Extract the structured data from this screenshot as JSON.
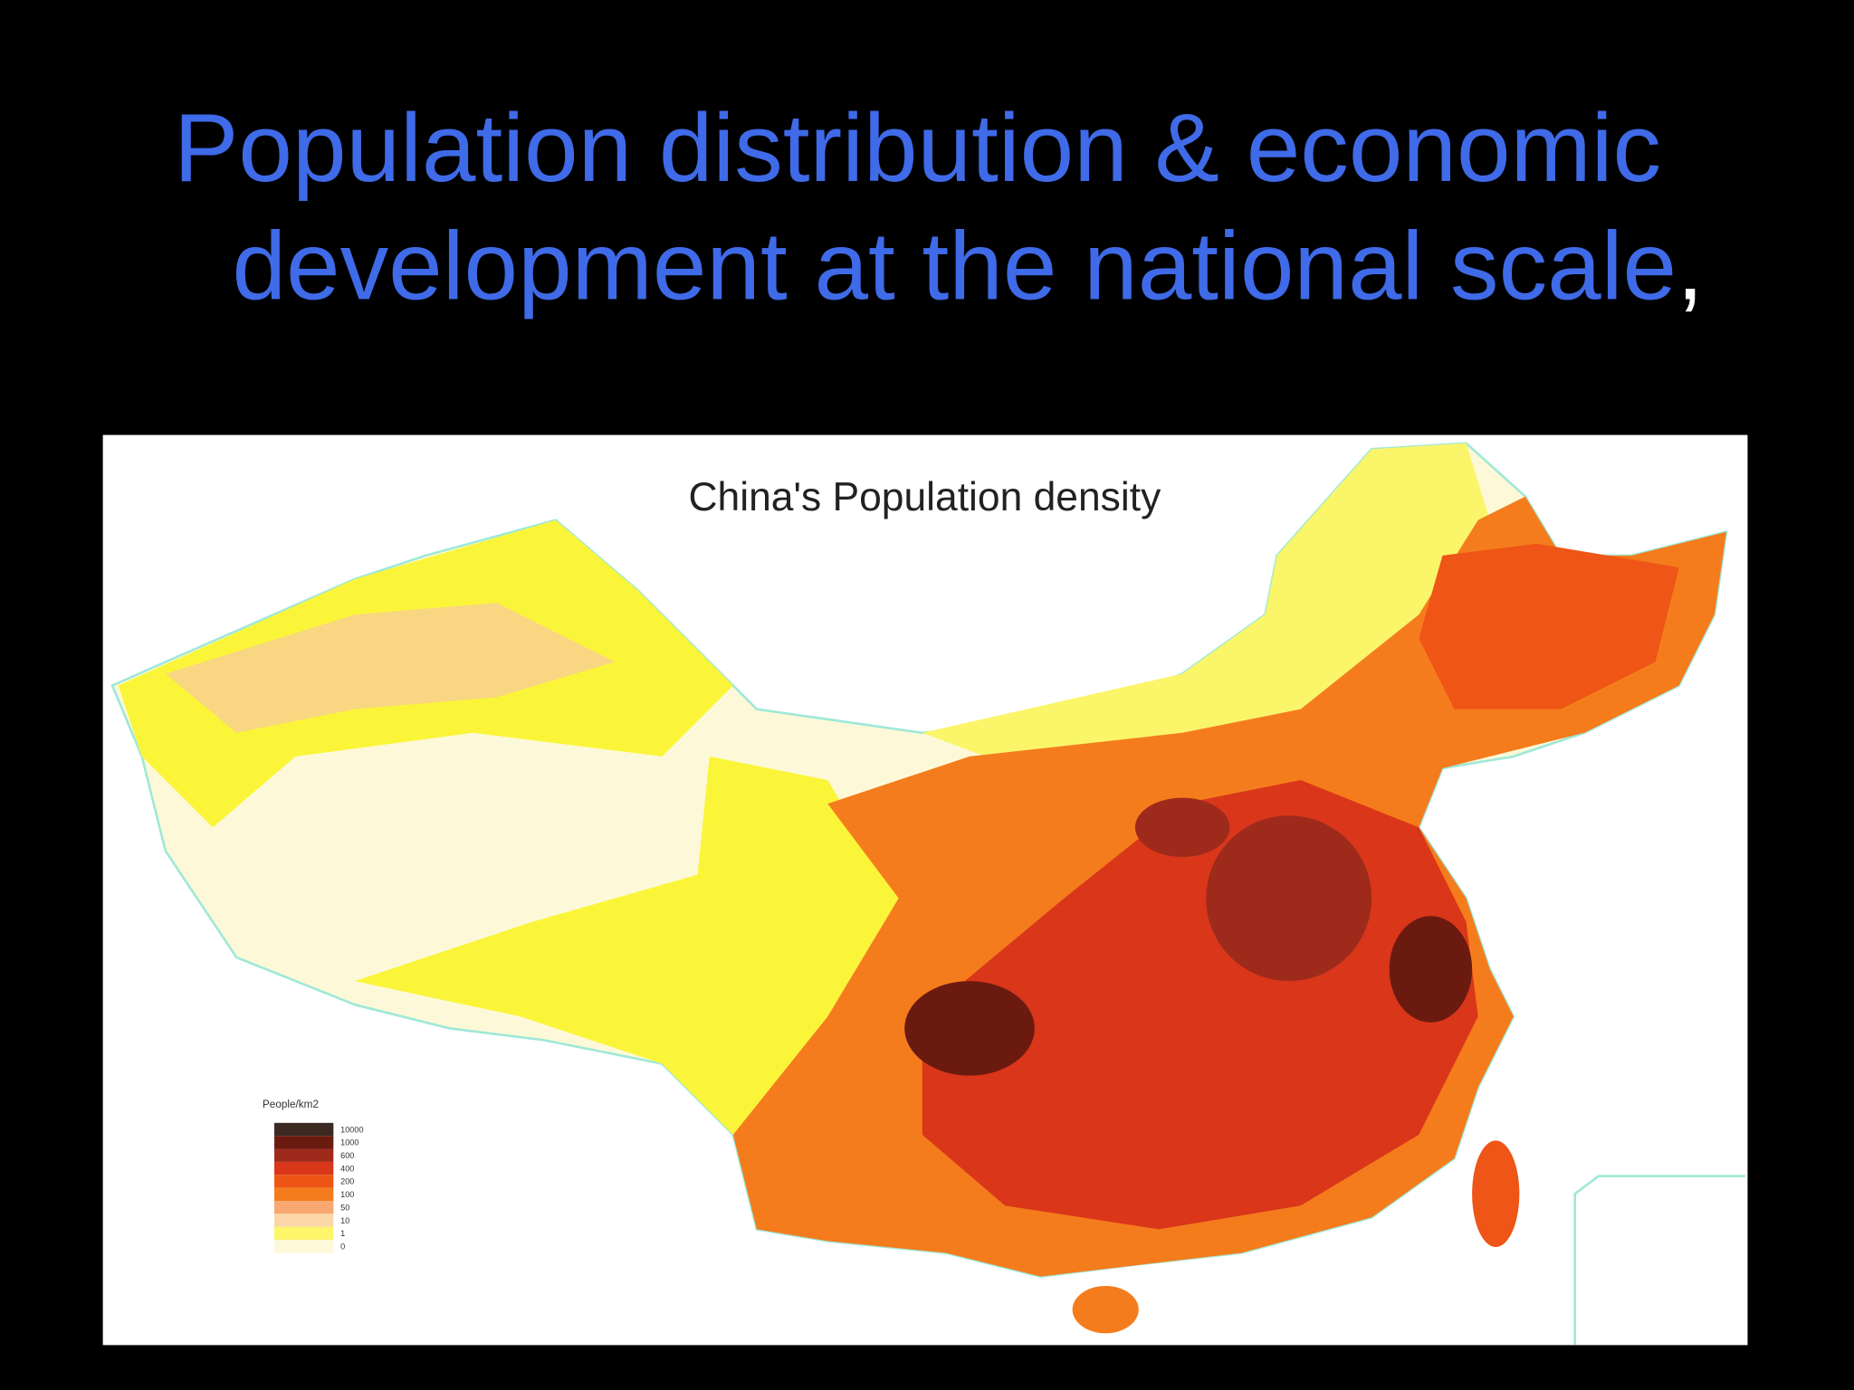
{
  "slide": {
    "title_line1": "Population distribution & economic",
    "title_line2": "development at the national scale",
    "title_comma": ","
  },
  "map": {
    "title": "China's Population density",
    "legend": {
      "title": "People/km2",
      "items": [
        {
          "label": "10000",
          "color": "#3a2a22"
        },
        {
          "label": "1000",
          "color": "#6b1a10"
        },
        {
          "label": "600",
          "color": "#9e2a1c"
        },
        {
          "label": "400",
          "color": "#d9361a"
        },
        {
          "label": "200",
          "color": "#ee5516"
        },
        {
          "label": "100",
          "color": "#f57c1c"
        },
        {
          "label": "50",
          "color": "#f8a870"
        },
        {
          "label": "10",
          "color": "#fbd7a8"
        },
        {
          "label": "1",
          "color": "#fdf56a"
        },
        {
          "label": "0",
          "color": "#fdf9d8"
        }
      ]
    }
  }
}
